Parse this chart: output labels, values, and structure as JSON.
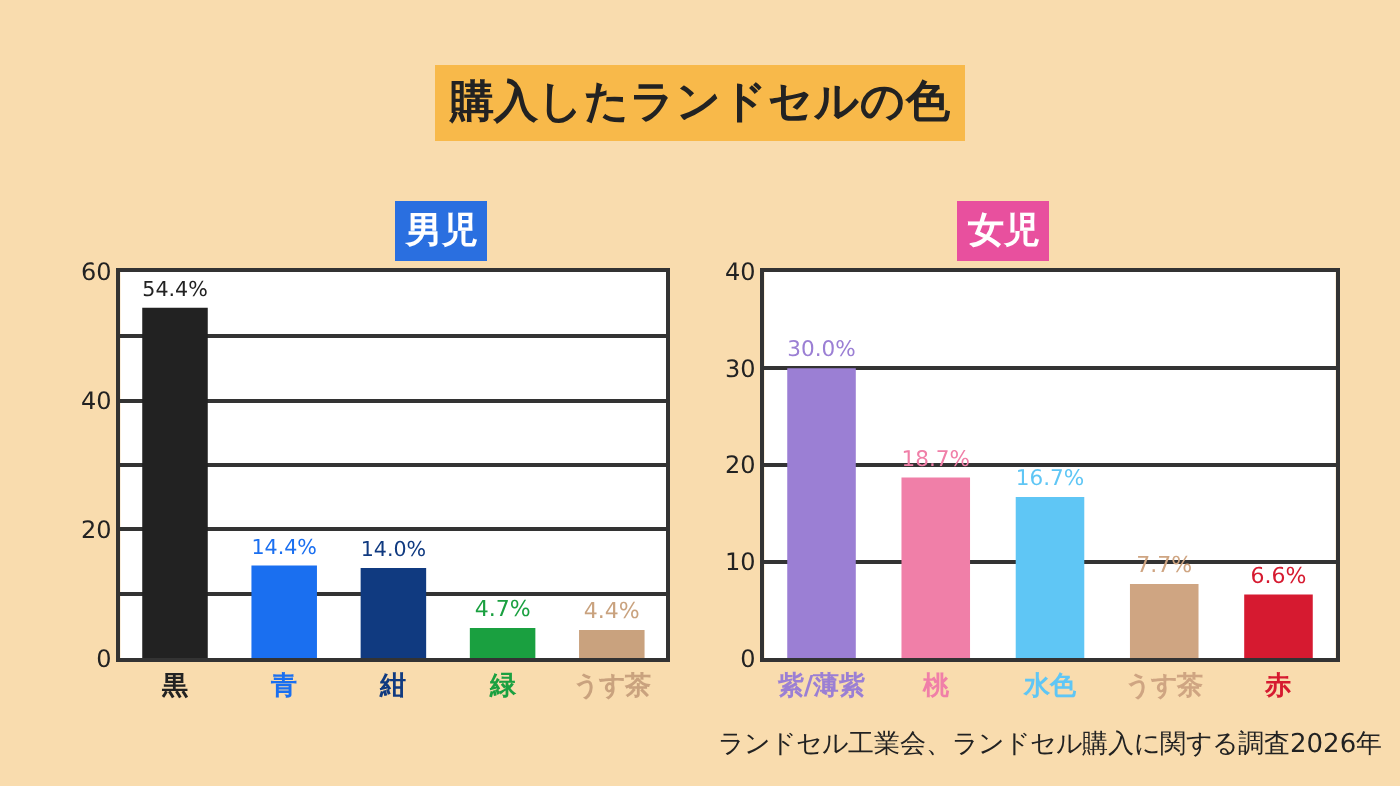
{
  "chart_data": [
    {
      "type": "bar",
      "title": "購入したランドセルの色",
      "subtitle": "男児",
      "categories": [
        "黒",
        "青",
        "紺",
        "緑",
        "うす茶"
      ],
      "values": [
        54.4,
        14.4,
        14.0,
        4.7,
        4.4
      ],
      "colors": [
        "#222222",
        "#1a6ff0",
        "#103a80",
        "#1aa040",
        "#c9a27e"
      ],
      "value_labels": [
        "54.4%",
        "14.4%",
        "14.0%",
        "4.7%",
        "4.4%"
      ],
      "ylim": [
        0,
        60
      ],
      "yticks": [
        0,
        {
          "value": 10,
          "label": null
        },
        20,
        {
          "value": 30,
          "label": null
        },
        40,
        {
          "value": 50,
          "label": null
        },
        60
      ],
      "grid": "y"
    },
    {
      "type": "bar",
      "title": "女児",
      "categories": [
        "紫/薄紫",
        "桃",
        "水色",
        "うす茶",
        "赤"
      ],
      "values": [
        30.0,
        18.7,
        16.7,
        7.7,
        6.6
      ],
      "colors": [
        "#9b7fd4",
        "#f07fa8",
        "#5fc6f5",
        "#cfa582",
        "#d61a30"
      ],
      "value_labels": [
        "30.0%",
        "18.7%",
        "16.7%",
        "7.7%",
        "6.6%"
      ],
      "ylim": [
        0,
        40
      ],
      "yticks": [
        0,
        10,
        20,
        30,
        40
      ],
      "grid": "y",
      "annotations": [
        "ランドセル工業会、ランドセル購入に関する調査2026年"
      ]
    }
  ]
}
